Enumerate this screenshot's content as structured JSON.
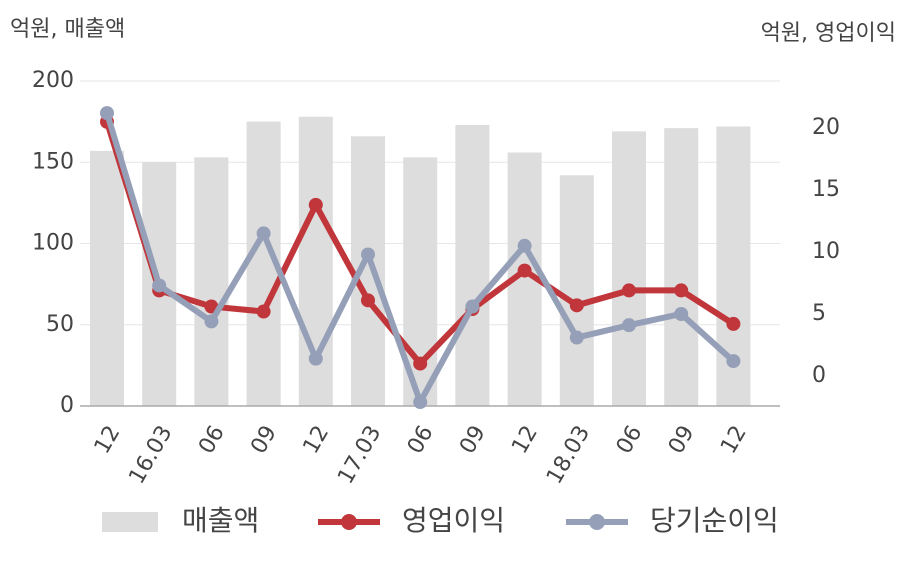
{
  "chart_data": {
    "type": "combo",
    "y_label": "억원, 매출액",
    "y2_label": "억원, 영업이익",
    "categories": [
      "12",
      "16.03",
      "06",
      "09",
      "12",
      "17.03",
      "06",
      "09",
      "12",
      "18.03",
      "06",
      "09",
      "12"
    ],
    "series": [
      {
        "name": "매출액",
        "type": "bar",
        "color": "#dddddd",
        "axis": "y",
        "values": [
          157,
          150,
          153,
          175,
          178,
          166,
          153,
          173,
          156,
          142,
          169,
          171,
          172
        ]
      },
      {
        "name": "영업이익",
        "type": "line",
        "color": "#c0363a",
        "axis": "y2",
        "values": [
          20.5,
          6.9,
          5.6,
          5.2,
          13.8,
          6.1,
          1.0,
          5.4,
          8.5,
          5.7,
          6.9,
          6.9,
          4.2
        ]
      },
      {
        "name": "당기순이익",
        "type": "line",
        "color": "#95a0b8",
        "axis": "y2",
        "values": [
          21.2,
          7.3,
          4.4,
          11.5,
          1.4,
          9.8,
          -2.1,
          5.6,
          10.5,
          3.1,
          4.1,
          5.0,
          1.2
        ]
      }
    ],
    "ylim": [
      0,
      200
    ],
    "yticks": [
      0,
      50,
      100,
      150,
      200
    ],
    "y2lim": [
      -2.42,
      23.79
    ],
    "y2ticks": [
      0,
      5,
      10,
      15,
      20
    ],
    "grid": true
  }
}
